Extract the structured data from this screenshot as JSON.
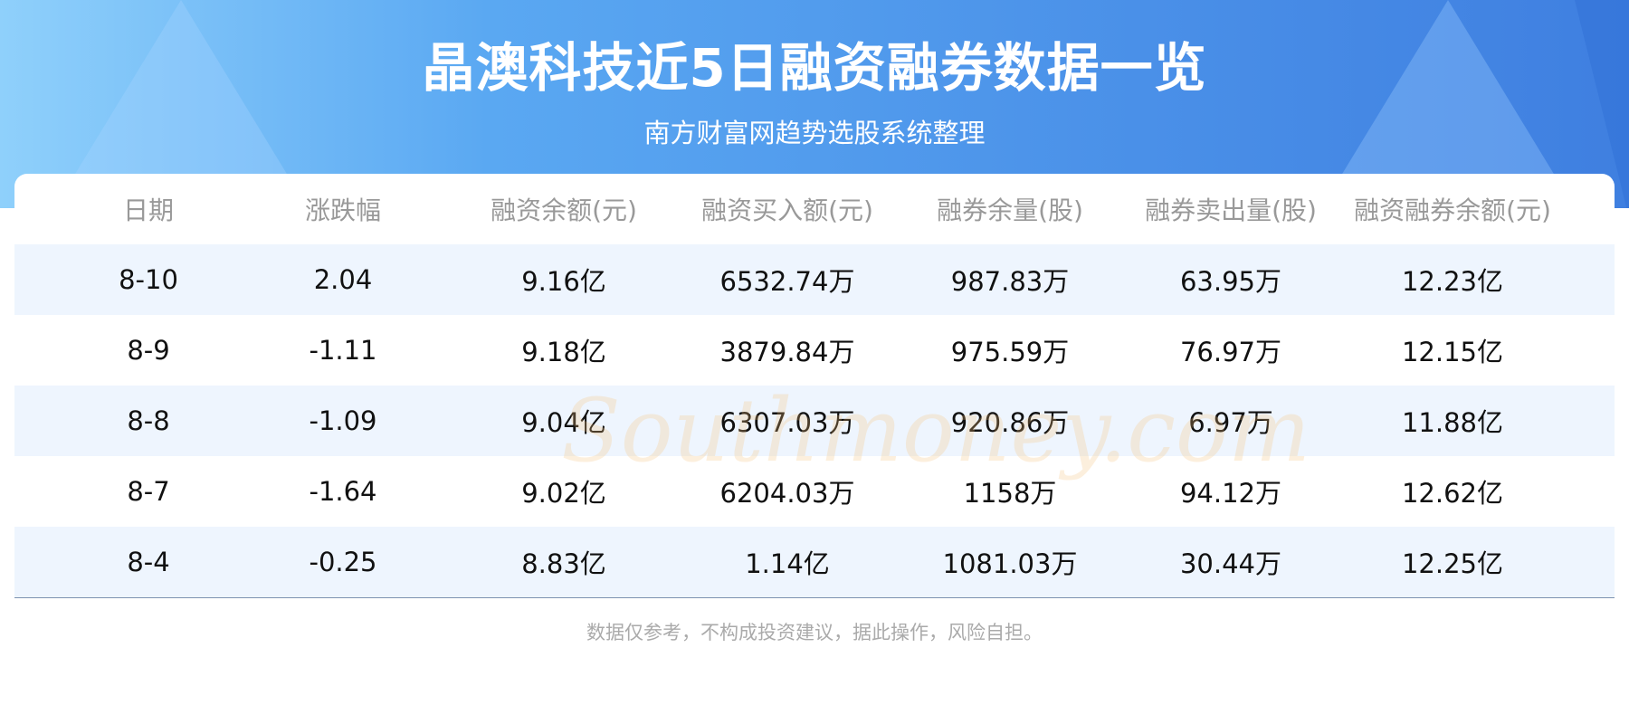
{
  "header": {
    "title": "晶澳科技近5日融资融券数据一览",
    "subtitle": "南方财富网趋势选股系统整理"
  },
  "table": {
    "columns": [
      "日期",
      "涨跌幅",
      "融资余额(元)",
      "融资买入额(元)",
      "融券余量(股)",
      "融券卖出量(股)",
      "融资融券余额(元)"
    ],
    "rows": [
      [
        "8-10",
        "2.04",
        "9.16亿",
        "6532.74万",
        "987.83万",
        "63.95万",
        "12.23亿"
      ],
      [
        "8-9",
        "-1.11",
        "9.18亿",
        "3879.84万",
        "975.59万",
        "76.97万",
        "12.15亿"
      ],
      [
        "8-8",
        "-1.09",
        "9.04亿",
        "6307.03万",
        "920.86万",
        "6.97万",
        "11.88亿"
      ],
      [
        "8-7",
        "-1.64",
        "9.02亿",
        "6204.03万",
        "1158万",
        "94.12万",
        "12.62亿"
      ],
      [
        "8-4",
        "-0.25",
        "8.83亿",
        "1.14亿",
        "1081.03万",
        "30.44万",
        "12.25亿"
      ]
    ]
  },
  "watermark": "南方财富网 Southmoney.com",
  "footer": {
    "disclaimer": "数据仅参考，不构成投资建议，据此操作，风险自担。"
  },
  "colors": {
    "banner": "#4a90e8",
    "row_alt": "#eef5fe",
    "header_text": "#999999"
  }
}
